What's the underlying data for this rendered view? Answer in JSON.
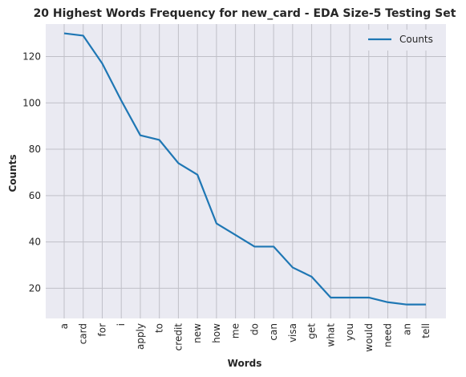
{
  "chart_data": {
    "type": "line",
    "title": "20 Highest Words Frequency for new_card - EDA Size-5 Testing Set",
    "xlabel": "Words",
    "ylabel": "Counts",
    "categories": [
      "a",
      "card",
      "for",
      "i",
      "apply",
      "to",
      "credit",
      "new",
      "how",
      "me",
      "do",
      "can",
      "visa",
      "get",
      "what",
      "you",
      "would",
      "need",
      "an",
      "tell"
    ],
    "series": [
      {
        "name": "Counts",
        "values": [
          130,
          129,
          117,
          101,
          86,
          84,
          74,
          69,
          48,
          43,
          38,
          38,
          29,
          25,
          16,
          16,
          16,
          14,
          13,
          13
        ]
      }
    ],
    "ylim": [
      7,
      134
    ],
    "yticks": [
      20,
      40,
      60,
      80,
      100,
      120
    ],
    "grid": true,
    "legend": "top-right",
    "colors": {
      "line": "#1f77b4",
      "background": "#eaeaf2",
      "grid": "#c0c0c8"
    }
  }
}
